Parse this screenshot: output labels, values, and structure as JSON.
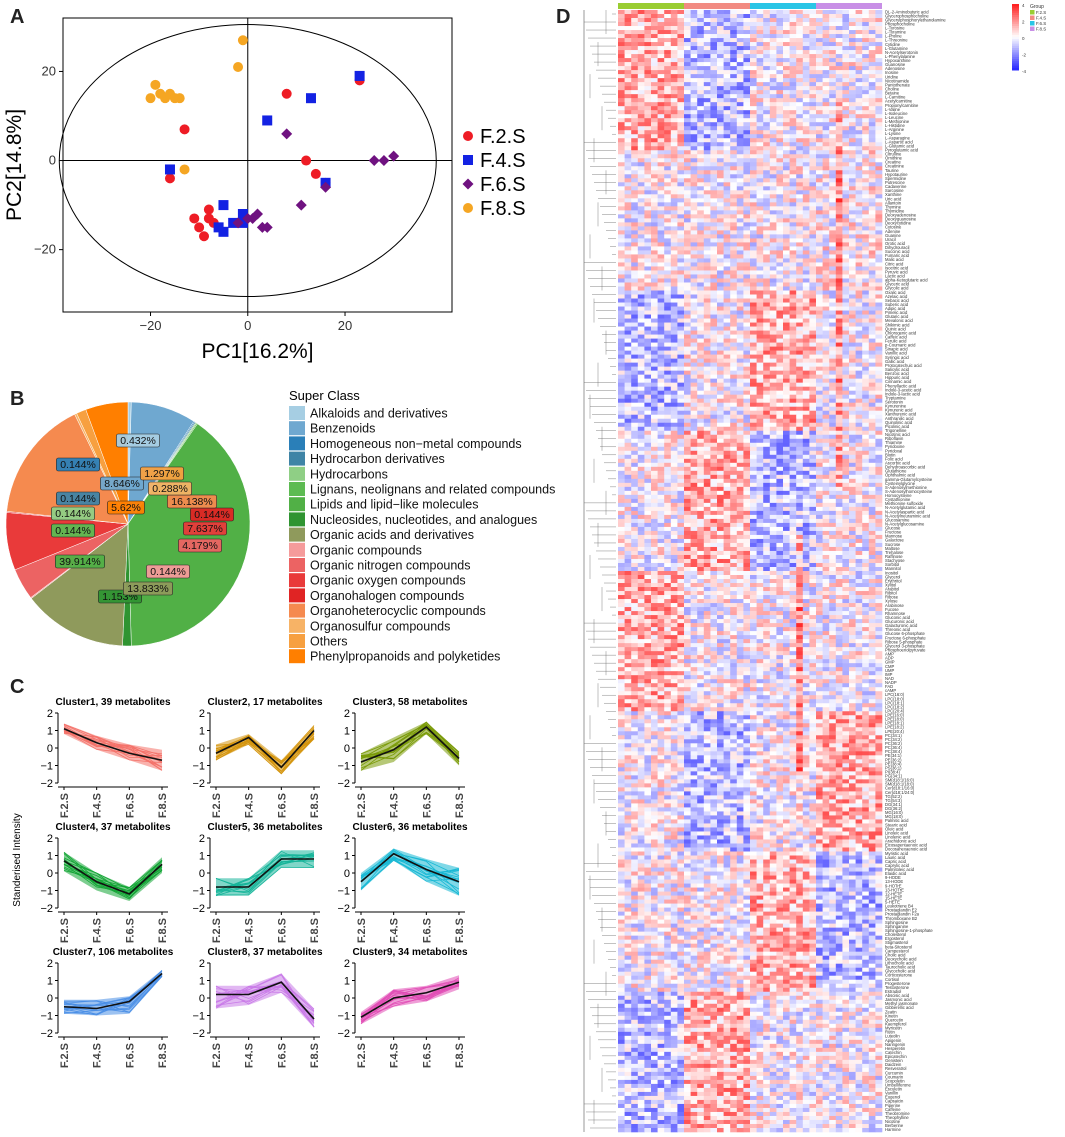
{
  "panels": {
    "a": "A",
    "b": "B",
    "c": "C",
    "d": "D"
  },
  "chart_data": [
    {
      "id": "pca",
      "type": "scatter",
      "xlabel": "PC1[16.2%]",
      "ylabel": "PC2[14.8%]",
      "xlim": [
        -38,
        42
      ],
      "ylim": [
        -34,
        32
      ],
      "xticks": [
        -20,
        0,
        20
      ],
      "yticks": [
        -20,
        0,
        20
      ],
      "legend_position": "right",
      "series": [
        {
          "name": "F.2.S",
          "marker": "circle",
          "color": "#ee1c25",
          "points": [
            [
              -16,
              -4
            ],
            [
              -13,
              7
            ],
            [
              -11,
              -13
            ],
            [
              -10,
              -15
            ],
            [
              -9,
              -17
            ],
            [
              -8,
              -11
            ],
            [
              -8,
              -13
            ],
            [
              -7,
              -14
            ],
            [
              8,
              15
            ],
            [
              12,
              0
            ],
            [
              14,
              -3
            ],
            [
              16,
              -5
            ],
            [
              23,
              18
            ]
          ]
        },
        {
          "name": "F.4.S",
          "marker": "square",
          "color": "#1322e3",
          "points": [
            [
              -16,
              -2
            ],
            [
              -6,
              -15
            ],
            [
              -5,
              -16
            ],
            [
              -3,
              -14
            ],
            [
              -5,
              -10
            ],
            [
              -1,
              -12
            ],
            [
              -1,
              -14
            ],
            [
              4,
              9
            ],
            [
              13,
              14
            ],
            [
              16,
              -5
            ],
            [
              23,
              19
            ]
          ]
        },
        {
          "name": "F.6.S",
          "marker": "diamond",
          "color": "#6f1280",
          "points": [
            [
              1,
              -13
            ],
            [
              0,
              -13
            ],
            [
              -2,
              -14
            ],
            [
              2,
              -12
            ],
            [
              3,
              -15
            ],
            [
              4,
              -15
            ],
            [
              8,
              6
            ],
            [
              11,
              -10
            ],
            [
              16,
              -6
            ],
            [
              26,
              0
            ],
            [
              28,
              0
            ],
            [
              30,
              1
            ]
          ]
        },
        {
          "name": "F.8.S",
          "marker": "circle",
          "color": "#f5a623",
          "points": [
            [
              -20,
              14
            ],
            [
              -19,
              17
            ],
            [
              -18,
              15
            ],
            [
              -17,
              14
            ],
            [
              -16,
              15
            ],
            [
              -15,
              14
            ],
            [
              -14,
              14
            ],
            [
              -13,
              -2
            ],
            [
              -2,
              21
            ],
            [
              -1,
              27
            ]
          ]
        }
      ]
    },
    {
      "id": "superclass",
      "type": "pie",
      "legend_title": "Super Class",
      "categories": [
        "Alkaloids and derivatives",
        "Benzenoids",
        "Homogeneous non−metal compounds",
        "Hydrocarbon derivatives",
        "Hydrocarbons",
        "Lignans, neolignans and related compounds",
        "Lipids and lipid−like molecules",
        "Nucleosides, nucleotides, and analogues",
        "Organic acids and derivatives",
        "Organic compounds",
        "Organic nitrogen compounds",
        "Organic oxygen compounds",
        "Organohalogen compounds",
        "Organoheterocyclic compounds",
        "Organosulfur compounds",
        "Others",
        "Phenylpropanoids and polyketides"
      ],
      "colors": [
        "#a6cee3",
        "#6fa8d0",
        "#2a7fb8",
        "#3f84a6",
        "#8fcf85",
        "#5dbb52",
        "#51b046",
        "#2f9431",
        "#8f9a5c",
        "#f59b9b",
        "#ec6363",
        "#e93a3a",
        "#e02424",
        "#f58a4f",
        "#f7b366",
        "#f7a040",
        "#ff7f00"
      ],
      "values": [
        0.432,
        8.646,
        0.144,
        0.144,
        0.144,
        0.144,
        39.914,
        1.153,
        13.833,
        0.144,
        4.179,
        7.637,
        0.144,
        16.138,
        0.288,
        1.297,
        5.62
      ],
      "labels": [
        "0.432%",
        "8.646%",
        "0.144%",
        "0.144%",
        "0.144%",
        "0.144%",
        "39.914%",
        "1.153%",
        "13.833%",
        "0.144%",
        "4.179%",
        "7.637%",
        "0.144%",
        "16.138%",
        "0.288%",
        "1.297%",
        "5.62%"
      ]
    },
    {
      "id": "clusters",
      "type": "line",
      "ylabel": "Standerised Intensity",
      "x": [
        "F.2.S",
        "F.4.S",
        "F.6.S",
        "F.8.S"
      ],
      "ylim": [
        -2,
        2
      ],
      "yticks": [
        -2,
        -1,
        0,
        1,
        2
      ],
      "series": [
        {
          "title": "Cluster1, 39 metabolites",
          "color": "#f4726a",
          "mean": [
            1.1,
            0.3,
            -0.3,
            -0.7
          ],
          "spread": 0.55,
          "lo": [
            0.8,
            -0.1,
            -0.7,
            -1.3
          ],
          "hi": [
            1.4,
            0.7,
            0.2,
            -0.1
          ]
        },
        {
          "title": "Cluster2, 17 metabolites",
          "color": "#d4940c",
          "mean": [
            -0.3,
            0.6,
            -1.1,
            1.0
          ],
          "spread": 0.4,
          "lo": [
            -0.7,
            0.2,
            -1.5,
            0.5
          ],
          "hi": [
            0.2,
            0.8,
            -0.7,
            1.3
          ]
        },
        {
          "title": "Cluster3, 58 metabolites",
          "color": "#7a9a08",
          "mean": [
            -0.8,
            -0.1,
            1.2,
            -0.6
          ],
          "spread": 0.5,
          "lo": [
            -1.3,
            -0.8,
            0.8,
            -1.0
          ],
          "hi": [
            -0.3,
            0.6,
            1.5,
            -0.2
          ]
        },
        {
          "title": "Cluster4, 37 metabolites",
          "color": "#13a535",
          "mean": [
            0.7,
            -0.5,
            -1.2,
            0.5
          ],
          "spread": 0.5,
          "lo": [
            0.1,
            -1.0,
            -1.6,
            0.0
          ],
          "hi": [
            1.2,
            0.0,
            -0.8,
            0.9
          ]
        },
        {
          "title": "Cluster5, 36 metabolites",
          "color": "#17b59a",
          "mean": [
            -0.8,
            -0.8,
            0.8,
            0.8
          ],
          "spread": 0.5,
          "lo": [
            -1.3,
            -1.3,
            0.3,
            0.3
          ],
          "hi": [
            -0.3,
            -0.3,
            1.3,
            1.3
          ]
        },
        {
          "title": "Cluster6, 36 metabolites",
          "color": "#18b8d4",
          "mean": [
            -0.5,
            1.1,
            0.2,
            -0.5
          ],
          "spread": 0.5,
          "lo": [
            -1.0,
            0.7,
            -0.5,
            -1.3
          ],
          "hi": [
            0.0,
            1.4,
            0.8,
            0.3
          ]
        },
        {
          "title": "Cluster7, 106 metabolites",
          "color": "#4b8fe6",
          "mean": [
            -0.5,
            -0.6,
            -0.2,
            1.4
          ],
          "spread": 0.4,
          "lo": [
            -0.9,
            -1.0,
            -0.9,
            1.2
          ],
          "hi": [
            -0.1,
            -0.1,
            0.1,
            1.6
          ]
        },
        {
          "title": "Cluster8, 37 metabolites",
          "color": "#c97be8",
          "mean": [
            0.2,
            0.2,
            0.9,
            -1.2
          ],
          "spread": 0.5,
          "lo": [
            -0.6,
            -0.4,
            0.3,
            -1.7
          ],
          "hi": [
            0.7,
            0.7,
            1.4,
            -0.6
          ]
        },
        {
          "title": "Cluster9, 34 metabolites",
          "color": "#e14fb6",
          "mean": [
            -1.1,
            0.0,
            0.3,
            0.9
          ],
          "spread": 0.45,
          "lo": [
            -1.5,
            -0.5,
            -0.2,
            0.5
          ],
          "hi": [
            -0.8,
            0.5,
            0.7,
            1.3
          ]
        }
      ]
    },
    {
      "id": "heatmap",
      "type": "heatmap",
      "group_title": "Group",
      "groups": [
        "F.2.S",
        "F.4.S",
        "F.6.S",
        "F.8.S"
      ],
      "group_colors": [
        "#9acd32",
        "#f28b82",
        "#29c5e6",
        "#c88fe6"
      ],
      "columns": 40,
      "rows": 280,
      "scale_ticks": [
        "4",
        "2",
        "0",
        "-2",
        "-4"
      ],
      "row_labels": [
        "DL-2-Aminobutyric acid",
        "Glycerophosphocholine",
        "Glycerylphosphorylethanolamine",
        "Phosphocholine",
        "L-Tyrosine",
        "L-Tyramine",
        "L-Proline",
        "L-Threonine",
        "Cytidine",
        "L-Glutamine",
        "N-Acetylserotonin",
        "L-Phenylalanine",
        "Hypoxanthine",
        "Guanosine",
        "Adenosine",
        "Inosine",
        "Uridine",
        "Nicotinamide",
        "Pantothenate",
        "Choline",
        "Betaine",
        "L-Carnitine",
        "Acetylcarnitine",
        "Propionylcarnitine",
        "L-Valine",
        "L-Isoleucine",
        "L-Leucine",
        "L-Methionine",
        "L-Histidine",
        "L-Arginine",
        "L-Lysine",
        "L-Asparagine",
        "L-Aspartic acid",
        "L-Glutamic acid",
        "Pyroglutamic acid",
        "Citrulline",
        "Ornithine",
        "Creatine",
        "Creatinine",
        "Taurine",
        "Hypotaurine",
        "Spermidine",
        "Putrescine",
        "Cadaverine",
        "Sarcosine",
        "Xanthine",
        "Uric acid",
        "Allantoin",
        "Thymine",
        "Thymidine",
        "Deoxyadenosine",
        "Deoxyguanosine",
        "Deoxycytidine",
        "Cytosine",
        "Adenine",
        "Guanine",
        "Uracil",
        "Orotic acid",
        "Dihydrouracil",
        "Succinic acid",
        "Fumaric acid",
        "Malic acid",
        "Citric acid",
        "Isocitric acid",
        "Pyruvic acid",
        "Lactic acid",
        "alpha-Ketoglutaric acid",
        "Glyceric acid",
        "Glycolic acid",
        "Oxalic acid",
        "Azelaic acid",
        "Sebacic acid",
        "Suberic acid",
        "Adipic acid",
        "Pimelic acid",
        "Glutaric acid",
        "Mevalonic acid",
        "Shikimic acid",
        "Quinic acid",
        "Chlorogenic acid",
        "Caffeic acid",
        "Ferulic acid",
        "p-Coumaric acid",
        "Sinapic acid",
        "Vanillic acid",
        "Syringic acid",
        "Gallic acid",
        "Protocatechuic acid",
        "Salicylic acid",
        "Benzoic acid",
        "Hippuric acid",
        "Cinnamic acid",
        "Phenyllactic acid",
        "Indole-3-acetic acid",
        "Indole-3-lactic acid",
        "Tryptamine",
        "Serotonin",
        "Kynurenine",
        "Kynurenic acid",
        "Xanthurenic acid",
        "Anthranilic acid",
        "Quinolinic acid",
        "Picolinic acid",
        "Trigonelline",
        "Nicotinic acid",
        "Riboflavin",
        "Thiamine",
        "Pyridoxine",
        "Pyridoxal",
        "Biotin",
        "Folic acid",
        "Ascorbic acid",
        "Dehydroascorbic acid",
        "Glutathione",
        "Ophthalmic acid",
        "gamma-Glutamylcysteine",
        "Cysteinylglycine",
        "S-Adenosylmethionine",
        "S-Adenosylhomocysteine",
        "Homocysteine",
        "Cystathionine",
        "Methionine sulfoxide",
        "N-Acetylglutamic acid",
        "N-Acetylaspartic acid",
        "N-Acetylneuraminic acid",
        "Glucosamine",
        "N-Acetylglucosamine",
        "Glucose",
        "Fructose",
        "Mannose",
        "Galactose",
        "Sucrose",
        "Maltose",
        "Trehalose",
        "Raffinose",
        "Stachyose",
        "Sorbitol",
        "Mannitol",
        "Inositol",
        "Glycerol",
        "Erythritol",
        "Xylitol",
        "Arabitol",
        "Ribitol",
        "Ribose",
        "Xylose",
        "Arabinose",
        "Fucose",
        "Rhamnose",
        "Gluconic acid",
        "Glucuronic acid",
        "Galacturonic acid",
        "Threonic acid",
        "Glucose 6-phosphate",
        "Fructose 6-phosphate",
        "Ribose 5-phosphate",
        "Glycerol 3-phosphate",
        "Phosphoenolpyruvate",
        "AMP",
        "ADP",
        "GMP",
        "CMP",
        "UMP",
        "IMP",
        "NAD",
        "NADP",
        "FAD",
        "cAMP",
        "LPC(16:0)",
        "LPC(18:0)",
        "LPC(18:1)",
        "LPC(18:2)",
        "LPC(20:4)",
        "LPE(16:0)",
        "LPE(18:0)",
        "LPE(18:1)",
        "LPE(18:2)",
        "LPE(20:4)",
        "PC(34:1)",
        "PC(34:2)",
        "PC(36:2)",
        "PC(36:4)",
        "PC(38:4)",
        "PE(34:1)",
        "PE(36:2)",
        "PE(38:4)",
        "PS(36:1)",
        "PI(38:4)",
        "PG(34:1)",
        "SM(d18:1/16:0)",
        "SM(d18:1/18:0)",
        "Cer(d18:1/16:0)",
        "Cer(d18:1/24:0)",
        "TG(52:2)",
        "TG(54:3)",
        "DG(34:1)",
        "DG(36:2)",
        "MG(16:0)",
        "MG(18:0)",
        "Palmitic acid",
        "Stearic acid",
        "Oleic acid",
        "Linoleic acid",
        "Linolenic acid",
        "Arachidonic acid",
        "Eicosapentaenoic acid",
        "Docosahexaenoic acid",
        "Myristic acid",
        "Lauric acid",
        "Capric acid",
        "Caprylic acid",
        "Palmitoleic acid",
        "Elaidic acid",
        "9-HODE",
        "13-HODE",
        "9-HOTrE",
        "13-HOTrE",
        "12-HETE",
        "15-HETE",
        "5-HETE",
        "Leukotriene B4",
        "Prostaglandin E2",
        "Prostaglandin F2a",
        "Thromboxane B2",
        "Sphingosine",
        "Sphinganine",
        "Sphingosine-1-phosphate",
        "Cholesterol",
        "Ergosterol",
        "Stigmasterol",
        "beta-Sitosterol",
        "Campesterol",
        "Cholic acid",
        "Deoxycholic acid",
        "Lithocholic acid",
        "Taurocholic acid",
        "Glycocholic acid",
        "Corticosterone",
        "Cortisol",
        "Progesterone",
        "Testosterone",
        "Estradiol",
        "Abscisic acid",
        "Jasmonic acid",
        "Methyl jasmonate",
        "Gibberellic acid",
        "Zeatin",
        "Kinetin",
        "Quercetin",
        "Kaempferol",
        "Myricetin",
        "Rutin",
        "Luteolin",
        "Apigenin",
        "Naringenin",
        "Hesperetin",
        "Catechin",
        "Epicatechin",
        "Genistein",
        "Daidzein",
        "Resveratrol",
        "Curcumin",
        "Coumarin",
        "Scopoletin",
        "Umbelliferone",
        "Esculetin",
        "Vanillin",
        "Eugenol",
        "Capsaicin",
        "Piperine",
        "Caffeine",
        "Theobromine",
        "Theophylline",
        "Nicotine",
        "Berberine",
        "Harmine"
      ]
    }
  ]
}
